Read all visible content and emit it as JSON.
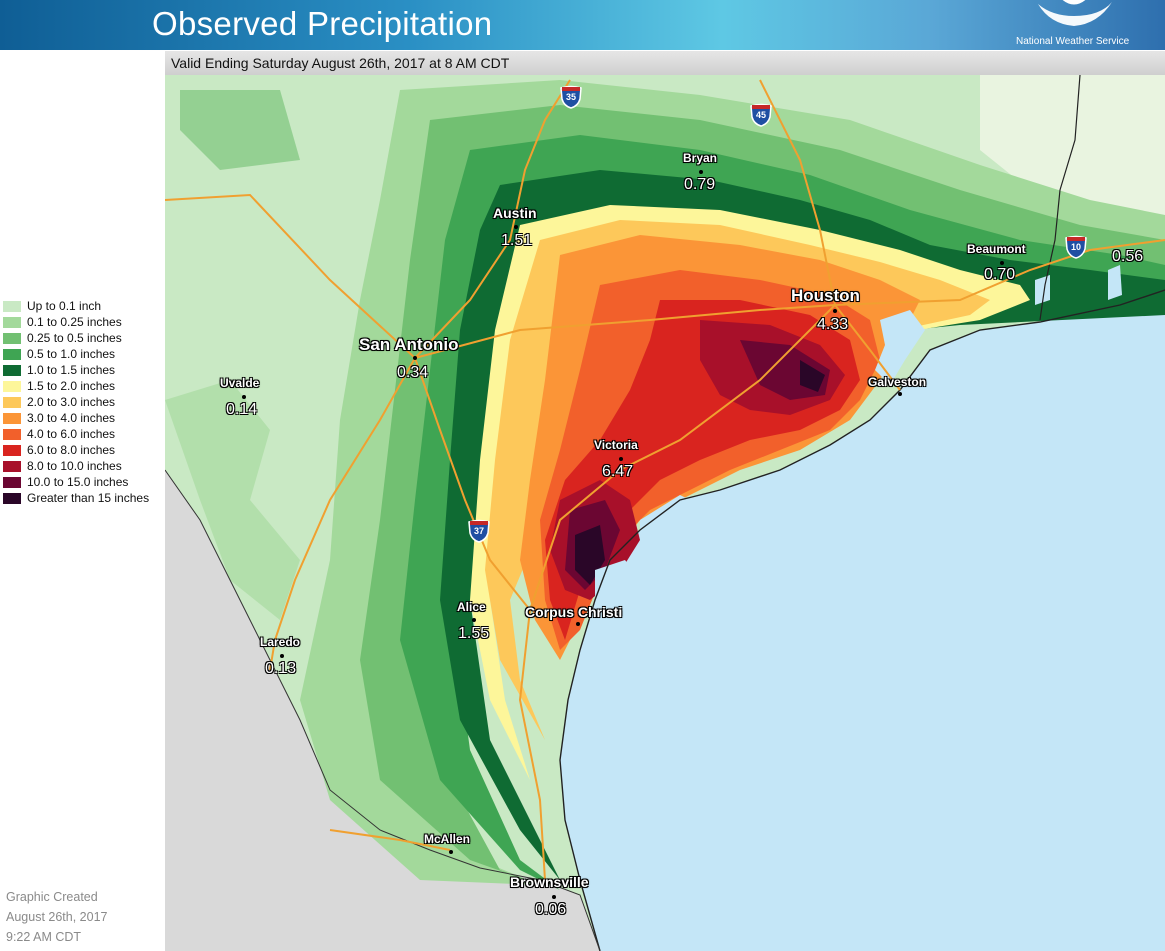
{
  "header": {
    "title": "Observed Precipitation",
    "agency": "National Weather Service"
  },
  "valid_text": "Valid Ending Saturday August 26th, 2017 at 8 AM CDT",
  "legend": [
    {
      "label": "Up to 0.1 inch",
      "color": "#c9e9c4"
    },
    {
      "label": "0.1 to 0.25 inches",
      "color": "#a3d99b"
    },
    {
      "label": "0.25 to 0.5 inches",
      "color": "#72c072"
    },
    {
      "label": "0.5 to 1.0 inches",
      "color": "#3fa553"
    },
    {
      "label": "1.0 to 1.5 inches",
      "color": "#0f6b33"
    },
    {
      "label": "1.5 to 2.0 inches",
      "color": "#fdf69a"
    },
    {
      "label": "2.0 to 3.0 inches",
      "color": "#fdc85a"
    },
    {
      "label": "3.0 to 4.0 inches",
      "color": "#fb9537"
    },
    {
      "label": "4.0 to 6.0 inches",
      "color": "#f2602b"
    },
    {
      "label": "6.0 to 8.0 inches",
      "color": "#d9241f"
    },
    {
      "label": "8.0 to 10.0 inches",
      "color": "#a8102a"
    },
    {
      "label": "10.0 to 15.0 inches",
      "color": "#6b0632"
    },
    {
      "label": "Greater than 15 inches",
      "color": "#2a0628"
    }
  ],
  "created": {
    "line1": "Graphic Created",
    "line2": "August 26th, 2017",
    "line3": "9:22 AM CDT"
  },
  "cities": {
    "bryan": {
      "name": "Bryan",
      "value": "0.79"
    },
    "austin": {
      "name": "Austin",
      "value": "1.51"
    },
    "san_antonio": {
      "name": "San Antonio",
      "value": "0.34"
    },
    "uvalde": {
      "name": "Uvalde",
      "value": "0.14"
    },
    "houston": {
      "name": "Houston",
      "value": "4.33"
    },
    "beaumont": {
      "name": "Beaumont",
      "value": "0.70"
    },
    "galveston": {
      "name": "Galveston"
    },
    "victoria": {
      "name": "Victoria",
      "value": "6.47"
    },
    "alice": {
      "name": "Alice",
      "value": "1.55"
    },
    "corpus": {
      "name": "Corpus Christi"
    },
    "laredo": {
      "name": "Laredo",
      "value": "0.13"
    },
    "mcallen": {
      "name": "McAllen"
    },
    "brownsville": {
      "name": "Brownsville",
      "value": "0.06"
    },
    "east_value": "0.56"
  },
  "interstates": {
    "i35": "35",
    "i45": "45",
    "i10": "10",
    "i37": "37"
  },
  "colors": {
    "gulf": "#c4e6f7",
    "mexico": "#d9d9d9",
    "highway": "#f0a030"
  }
}
